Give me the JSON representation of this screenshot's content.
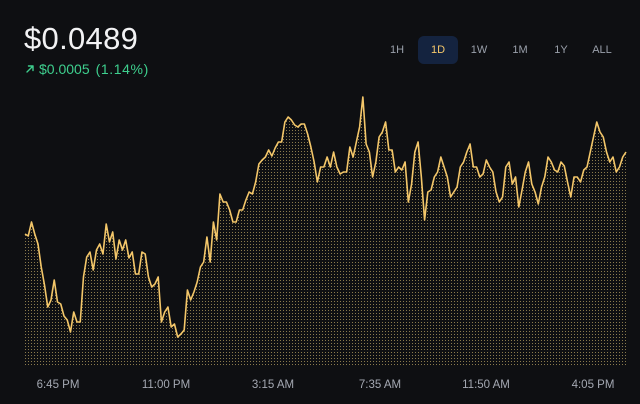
{
  "price": {
    "current": "$0.0489",
    "change_value": "$0.0005",
    "change_percent": "(1.14%)",
    "change_icon": "arrow-up-right-icon",
    "change_color": "#3ecf8e"
  },
  "ranges": {
    "items": [
      "1H",
      "1D",
      "1W",
      "1M",
      "1Y",
      "ALL"
    ],
    "selected": "1D"
  },
  "colors": {
    "line": "#f4c76a",
    "dots": "#8a7a4c",
    "background": "#0e0f12",
    "active_range_bg": "#14233f"
  },
  "chart_data": {
    "type": "area",
    "x_tick_labels": [
      "6:45 PM",
      "11:00 PM",
      "3:15 AM",
      "7:35 AM",
      "11:50 AM",
      "4:05 PM"
    ],
    "ylim": [
      0,
      330
    ],
    "grid": false,
    "legend": "none",
    "values": [
      128,
      126,
      140,
      128,
      118,
      95,
      77,
      55,
      62,
      82,
      60,
      58,
      46,
      42,
      30,
      50,
      40,
      40,
      85,
      105,
      110,
      92,
      112,
      118,
      108,
      138,
      120,
      130,
      103,
      122,
      112,
      122,
      104,
      110,
      88,
      88,
      110,
      108,
      85,
      75,
      78,
      85,
      40,
      50,
      55,
      35,
      38,
      25,
      28,
      32,
      72,
      62,
      70,
      80,
      95,
      100,
      125,
      100,
      140,
      122,
      168,
      160,
      160,
      152,
      140,
      140,
      152,
      152,
      162,
      170,
      168,
      180,
      198,
      202,
      205,
      212,
      206,
      214,
      220,
      220,
      240,
      245,
      242,
      237,
      235,
      238,
      238,
      228,
      215,
      200,
      180,
      195,
      195,
      205,
      195,
      210,
      195,
      188,
      190,
      190,
      215,
      205,
      220,
      235,
      265,
      218,
      210,
      185,
      200,
      225,
      230,
      240,
      212,
      212,
      190,
      195,
      192,
      200,
      160,
      178,
      210,
      220,
      185,
      142,
      170,
      172,
      185,
      190,
      205,
      195,
      185,
      165,
      170,
      175,
      195,
      200,
      210,
      218,
      195,
      195,
      185,
      188,
      202,
      195,
      190,
      170,
      160,
      165,
      195,
      200,
      178,
      185,
      155,
      172,
      190,
      200,
      178,
      170,
      158,
      175,
      185,
      205,
      200,
      192,
      190,
      200,
      196,
      180,
      165,
      185,
      185,
      180,
      192,
      195,
      210,
      225,
      240,
      230,
      225,
      210,
      200,
      205,
      190,
      195,
      205,
      210
    ],
    "n_points": 186
  }
}
